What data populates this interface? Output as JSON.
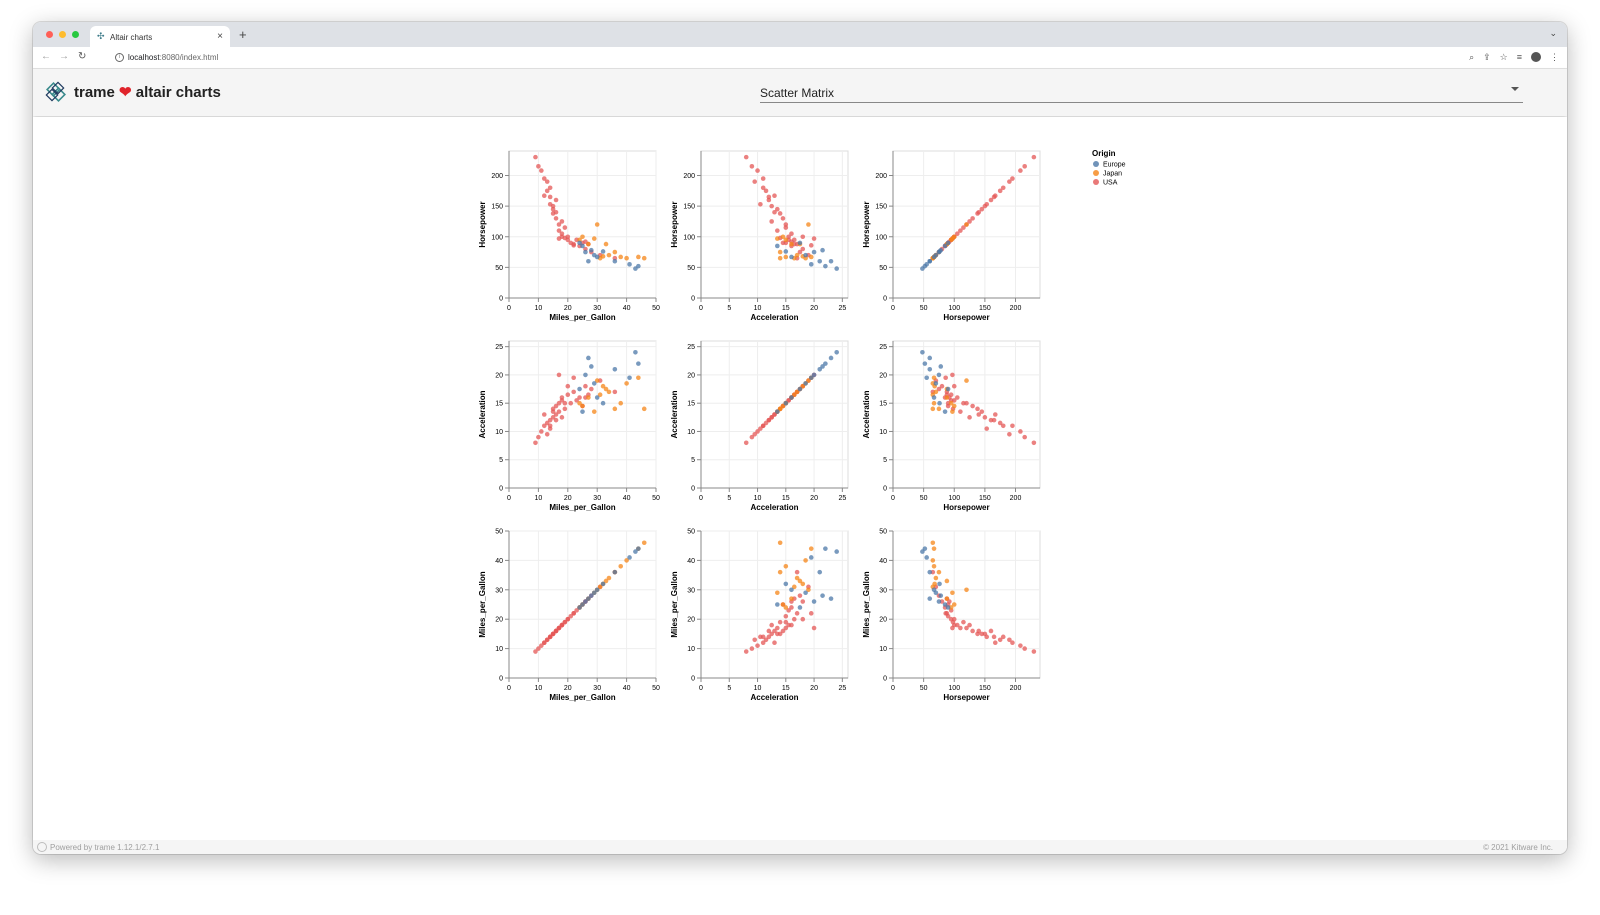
{
  "browser": {
    "tab_title": "Altair charts",
    "url_host": "localhost",
    "url_rest": ":8080/index.html",
    "light_colors": [
      "#ff5f57",
      "#febc2e",
      "#28c840"
    ]
  },
  "app": {
    "title": "trame",
    "title_suffix": "altair charts",
    "heart": "❤",
    "chart_select": {
      "selected": "Scatter Matrix"
    }
  },
  "footer": {
    "powered_by": "Powered by trame 1.12.1/2.7.1",
    "copyright": "© 2021 Kitware Inc."
  },
  "chart_data": {
    "type": "scatter",
    "variables": [
      {
        "name": "Horsepower",
        "ticks": [
          0,
          50,
          100,
          150,
          200
        ],
        "xticks": [
          0,
          50,
          100,
          150,
          200
        ],
        "range": [
          0,
          240
        ]
      },
      {
        "name": "Acceleration",
        "ticks": [
          0,
          5,
          10,
          15,
          20,
          25
        ],
        "xticks": [
          0,
          5,
          10,
          15,
          20,
          25
        ],
        "range": [
          0,
          26
        ]
      },
      {
        "name": "Miles_per_Gallon",
        "ticks": [
          0,
          10,
          20,
          30,
          40,
          50
        ],
        "xticks": [
          0,
          10,
          20,
          30,
          40,
          50
        ],
        "range": [
          0,
          50
        ]
      }
    ],
    "rows": [
      "Horsepower",
      "Acceleration",
      "Miles_per_Gallon"
    ],
    "columns": [
      "Miles_per_Gallon",
      "Acceleration",
      "Horsepower"
    ],
    "legend": {
      "title": "Origin",
      "position": "top-right",
      "entries": [
        {
          "name": "Europe",
          "color": "#4c78a8"
        },
        {
          "name": "Japan",
          "color": "#f58518"
        },
        {
          "name": "USA",
          "color": "#e45756"
        }
      ]
    },
    "series": [
      {
        "name": "USA",
        "color": "#e45756",
        "points": [
          {
            "Miles_per_Gallon": 9,
            "Acceleration": 8,
            "Horsepower": 230
          },
          {
            "Miles_per_Gallon": 10,
            "Acceleration": 9,
            "Horsepower": 215
          },
          {
            "Miles_per_Gallon": 11,
            "Acceleration": 10,
            "Horsepower": 208
          },
          {
            "Miles_per_Gallon": 12,
            "Acceleration": 11,
            "Horsepower": 195
          },
          {
            "Miles_per_Gallon": 13,
            "Acceleration": 9.5,
            "Horsepower": 190
          },
          {
            "Miles_per_Gallon": 13,
            "Acceleration": 11.5,
            "Horsepower": 175
          },
          {
            "Miles_per_Gallon": 14,
            "Acceleration": 12,
            "Horsepower": 165
          },
          {
            "Miles_per_Gallon": 14,
            "Acceleration": 10.5,
            "Horsepower": 153
          },
          {
            "Miles_per_Gallon": 15,
            "Acceleration": 12.5,
            "Horsepower": 150
          },
          {
            "Miles_per_Gallon": 15,
            "Acceleration": 13.5,
            "Horsepower": 145
          },
          {
            "Miles_per_Gallon": 16,
            "Acceleration": 13,
            "Horsepower": 140
          },
          {
            "Miles_per_Gallon": 16,
            "Acceleration": 14.5,
            "Horsepower": 130
          },
          {
            "Miles_per_Gallon": 17,
            "Acceleration": 15,
            "Horsepower": 120
          },
          {
            "Miles_per_Gallon": 17,
            "Acceleration": 13.5,
            "Horsepower": 110
          },
          {
            "Miles_per_Gallon": 18,
            "Acceleration": 16,
            "Horsepower": 105
          },
          {
            "Miles_per_Gallon": 18,
            "Acceleration": 15.5,
            "Horsepower": 100
          },
          {
            "Miles_per_Gallon": 19,
            "Acceleration": 14,
            "Horsepower": 98
          },
          {
            "Miles_per_Gallon": 20,
            "Acceleration": 16.5,
            "Horsepower": 95
          },
          {
            "Miles_per_Gallon": 21,
            "Acceleration": 15,
            "Horsepower": 90
          },
          {
            "Miles_per_Gallon": 22,
            "Acceleration": 17,
            "Horsepower": 88
          },
          {
            "Miles_per_Gallon": 24,
            "Acceleration": 16,
            "Horsepower": 85
          },
          {
            "Miles_per_Gallon": 26,
            "Acceleration": 18,
            "Horsepower": 80
          },
          {
            "Miles_per_Gallon": 28,
            "Acceleration": 17.5,
            "Horsepower": 75
          },
          {
            "Miles_per_Gallon": 31,
            "Acceleration": 19,
            "Horsepower": 70
          },
          {
            "Miles_per_Gallon": 14,
            "Acceleration": 11,
            "Horsepower": 180
          },
          {
            "Miles_per_Gallon": 16,
            "Acceleration": 12,
            "Horsepower": 160
          },
          {
            "Miles_per_Gallon": 19,
            "Acceleration": 15,
            "Horsepower": 115
          },
          {
            "Miles_per_Gallon": 23,
            "Acceleration": 15.5,
            "Horsepower": 95
          },
          {
            "Miles_per_Gallon": 25,
            "Acceleration": 14.5,
            "Horsepower": 90
          },
          {
            "Miles_per_Gallon": 27,
            "Acceleration": 16.5,
            "Horsepower": 88
          },
          {
            "Miles_per_Gallon": 12,
            "Acceleration": 13,
            "Horsepower": 167
          },
          {
            "Miles_per_Gallon": 15,
            "Acceleration": 14,
            "Horsepower": 138
          },
          {
            "Miles_per_Gallon": 18,
            "Acceleration": 12.5,
            "Horsepower": 125
          },
          {
            "Miles_per_Gallon": 20,
            "Acceleration": 18,
            "Horsepower": 100
          },
          {
            "Miles_per_Gallon": 22,
            "Acceleration": 19.5,
            "Horsepower": 86
          },
          {
            "Miles_per_Gallon": 17,
            "Acceleration": 20,
            "Horsepower": 97
          },
          {
            "Miles_per_Gallon": 36,
            "Acceleration": 17,
            "Horsepower": 65
          },
          {
            "Miles_per_Gallon": 26,
            "Acceleration": 16,
            "Horsepower": 92
          }
        ]
      },
      {
        "name": "Japan",
        "color": "#f58518",
        "points": [
          {
            "Miles_per_Gallon": 24,
            "Acceleration": 15,
            "Horsepower": 95
          },
          {
            "Miles_per_Gallon": 27,
            "Acceleration": 16,
            "Horsepower": 88
          },
          {
            "Miles_per_Gallon": 31,
            "Acceleration": 16.5,
            "Horsepower": 65
          },
          {
            "Miles_per_Gallon": 32,
            "Acceleration": 18,
            "Horsepower": 68
          },
          {
            "Miles_per_Gallon": 34,
            "Acceleration": 17,
            "Horsepower": 70
          },
          {
            "Miles_per_Gallon": 36,
            "Acceleration": 14,
            "Horsepower": 75
          },
          {
            "Miles_per_Gallon": 38,
            "Acceleration": 15,
            "Horsepower": 67
          },
          {
            "Miles_per_Gallon": 40,
            "Acceleration": 18.5,
            "Horsepower": 65
          },
          {
            "Miles_per_Gallon": 44,
            "Acceleration": 19.5,
            "Horsepower": 67
          },
          {
            "Miles_per_Gallon": 46,
            "Acceleration": 14,
            "Horsepower": 65
          },
          {
            "Miles_per_Gallon": 29,
            "Acceleration": 13.5,
            "Horsepower": 97
          },
          {
            "Miles_per_Gallon": 33,
            "Acceleration": 17.5,
            "Horsepower": 88
          },
          {
            "Miles_per_Gallon": 30,
            "Acceleration": 19,
            "Horsepower": 120
          },
          {
            "Miles_per_Gallon": 25,
            "Acceleration": 14.5,
            "Horsepower": 100
          }
        ]
      },
      {
        "name": "Europe",
        "color": "#4c78a8",
        "points": [
          {
            "Miles_per_Gallon": 26,
            "Acceleration": 20,
            "Horsepower": 75
          },
          {
            "Miles_per_Gallon": 28,
            "Acceleration": 21.5,
            "Horsepower": 78
          },
          {
            "Miles_per_Gallon": 30,
            "Acceleration": 16,
            "Horsepower": 67
          },
          {
            "Miles_per_Gallon": 32,
            "Acceleration": 15,
            "Horsepower": 76
          },
          {
            "Miles_per_Gallon": 29,
            "Acceleration": 18.5,
            "Horsepower": 70
          },
          {
            "Miles_per_Gallon": 36,
            "Acceleration": 21,
            "Horsepower": 60
          },
          {
            "Miles_per_Gallon": 43,
            "Acceleration": 24,
            "Horsepower": 48
          },
          {
            "Miles_per_Gallon": 44,
            "Acceleration": 22,
            "Horsepower": 52
          },
          {
            "Miles_per_Gallon": 41,
            "Acceleration": 19.5,
            "Horsepower": 55
          },
          {
            "Miles_per_Gallon": 25,
            "Acceleration": 13.5,
            "Horsepower": 85
          },
          {
            "Miles_per_Gallon": 24,
            "Acceleration": 17.5,
            "Horsepower": 90
          },
          {
            "Miles_per_Gallon": 27,
            "Acceleration": 23,
            "Horsepower": 60
          }
        ]
      }
    ]
  }
}
